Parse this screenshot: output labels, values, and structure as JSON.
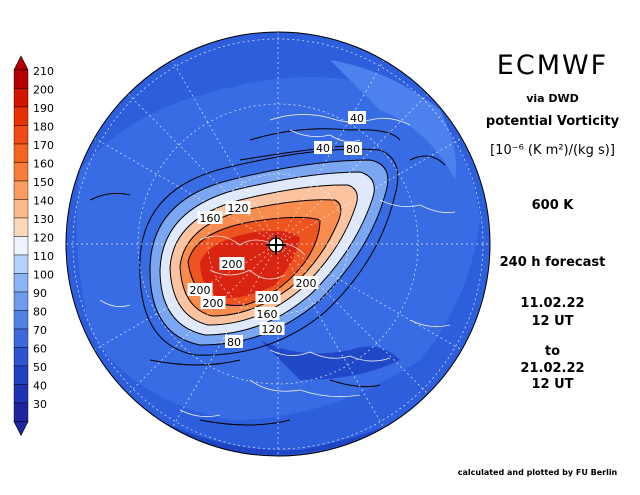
{
  "header": {
    "model": "ECMWF",
    "source": "via DWD",
    "quantity": "potential Vorticity",
    "unit": "[10⁻⁶ (K m²)/(kg s)]",
    "level": "600 K",
    "forecast": "240 h forecast",
    "start_date": "11.02.22",
    "start_time": "12 UT",
    "to_label": "to",
    "valid_date": "21.02.22",
    "valid_time": "12 UT"
  },
  "credit": "calculated and plotted by FU Berlin",
  "colorbar": {
    "ticks": [
      "210",
      "200",
      "190",
      "180",
      "170",
      "160",
      "150",
      "140",
      "130",
      "120",
      "110",
      "100",
      "90",
      "80",
      "70",
      "60",
      "50",
      "40",
      "30"
    ],
    "colors": [
      "#b40000",
      "#d21400",
      "#e63200",
      "#f04b14",
      "#f5641e",
      "#f87d3a",
      "#fa9b5f",
      "#fbb98c",
      "#fcd7b9",
      "#eef3ff",
      "#b4d2fa",
      "#8cb4f5",
      "#6e9bf0",
      "#5082e6",
      "#3c69dc",
      "#2d55d2",
      "#2341c3",
      "#1e32b4",
      "#1e23a0"
    ]
  },
  "map": {
    "background_color": "#2d5fdc",
    "contour_labels": [
      "40",
      "40",
      "80",
      "120",
      "160",
      "200",
      "200",
      "200",
      "200",
      "200",
      "160",
      "120",
      "80"
    ]
  }
}
